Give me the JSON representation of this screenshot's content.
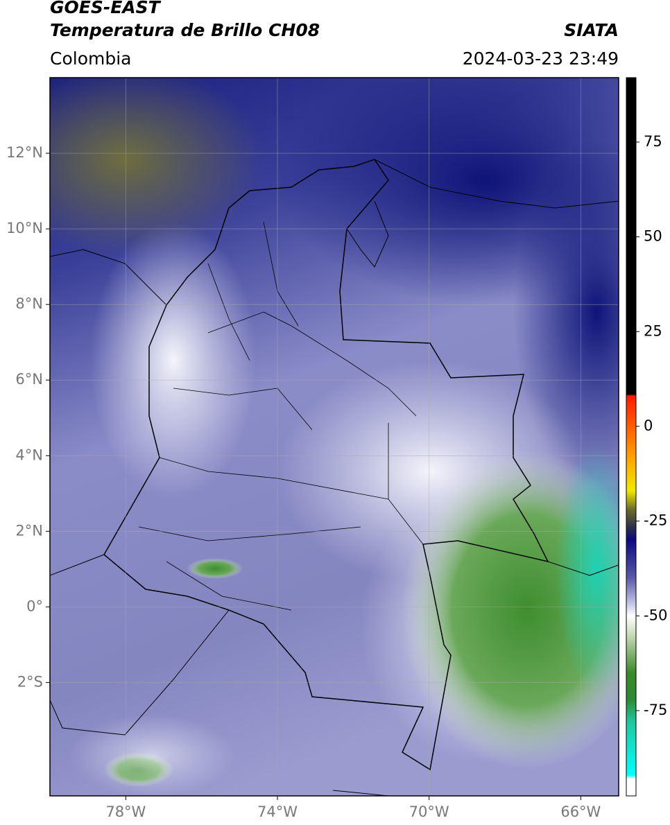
{
  "header": {
    "title": "GOES-EAST",
    "subtitle": "Temperatura de Brillo CH08",
    "region": "Colombia",
    "source": "SIATA",
    "timestamp": "2024-03-23 23:49"
  },
  "map": {
    "xlim": [
      -80,
      -65
    ],
    "ylim": [
      -5,
      14
    ],
    "xticks": [
      {
        "value": -78,
        "label": "78°W"
      },
      {
        "value": -74,
        "label": "74°W"
      },
      {
        "value": -70,
        "label": "70°W"
      },
      {
        "value": -66,
        "label": "66°W"
      }
    ],
    "yticks": [
      {
        "value": 12,
        "label": "12°N"
      },
      {
        "value": 10,
        "label": "10°N"
      },
      {
        "value": 8,
        "label": "8°N"
      },
      {
        "value": 6,
        "label": "6°N"
      },
      {
        "value": 4,
        "label": "4°N"
      },
      {
        "value": 2,
        "label": "2°N"
      },
      {
        "value": 0,
        "label": "0°"
      },
      {
        "value": -2,
        "label": "2°S"
      }
    ],
    "grid": true
  },
  "colorbar": {
    "lim": [
      -97.5,
      92
    ],
    "ticks": [
      75,
      50,
      25,
      0,
      -25,
      -50,
      -75
    ],
    "stops": [
      {
        "value": 92,
        "color": "#000000"
      },
      {
        "value": 8.5,
        "color": "#000000"
      },
      {
        "value": 8,
        "color": "#ff1a00"
      },
      {
        "value": -8,
        "color": "#ffa000"
      },
      {
        "value": -17,
        "color": "#f0e800"
      },
      {
        "value": -22,
        "color": "#6a6a2a"
      },
      {
        "value": -27,
        "color": "#2a2a50"
      },
      {
        "value": -30,
        "color": "#0a0a80"
      },
      {
        "value": -40,
        "color": "#5a5aaa"
      },
      {
        "value": -47,
        "color": "#c8c8e8"
      },
      {
        "value": -50,
        "color": "#ffffff"
      },
      {
        "value": -55,
        "color": "#c8dcb8"
      },
      {
        "value": -65,
        "color": "#3a8a28"
      },
      {
        "value": -72,
        "color": "#2a8a30"
      },
      {
        "value": -78,
        "color": "#20c8a0"
      },
      {
        "value": -92,
        "color": "#00ffff"
      },
      {
        "value": -93,
        "color": "#ffffff"
      },
      {
        "value": -97.5,
        "color": "#ffffff"
      }
    ]
  }
}
